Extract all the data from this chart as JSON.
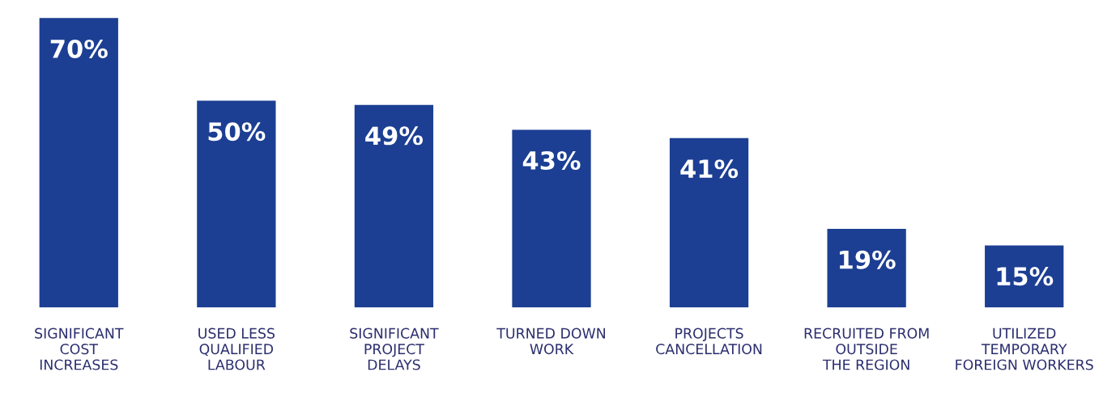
{
  "chart_data": {
    "type": "bar",
    "categories": [
      "SIGNIFICANT\nCOST\nINCREASES",
      "USED LESS\nQUALIFIED\nLABOUR",
      "SIGNIFICANT\nPROJECT\nDELAYS",
      "TURNED DOWN\nWORK",
      "PROJECTS\nCANCELLATION",
      "RECRUITED FROM\nOUTSIDE\nTHE REGION",
      "UTILIZED\nTEMPORARY\nFOREIGN WORKERS"
    ],
    "values": [
      70,
      50,
      49,
      43,
      41,
      19,
      15
    ],
    "value_labels": [
      "70%",
      "50%",
      "49%",
      "43%",
      "41%",
      "19%",
      "15%"
    ],
    "color": "#1c3f93",
    "grid": false,
    "legend": false
  }
}
